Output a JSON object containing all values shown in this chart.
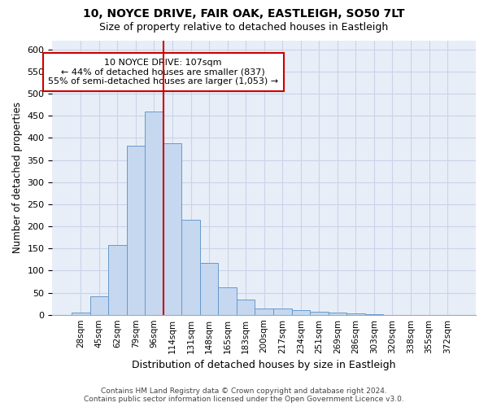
{
  "title1": "10, NOYCE DRIVE, FAIR OAK, EASTLEIGH, SO50 7LT",
  "title2": "Size of property relative to detached houses in Eastleigh",
  "xlabel": "Distribution of detached houses by size in Eastleigh",
  "ylabel": "Number of detached properties",
  "categories": [
    "28sqm",
    "45sqm",
    "62sqm",
    "79sqm",
    "96sqm",
    "114sqm",
    "131sqm",
    "148sqm",
    "165sqm",
    "183sqm",
    "200sqm",
    "217sqm",
    "234sqm",
    "251sqm",
    "269sqm",
    "286sqm",
    "303sqm",
    "320sqm",
    "338sqm",
    "355sqm",
    "372sqm"
  ],
  "values": [
    5,
    42,
    158,
    383,
    460,
    388,
    215,
    118,
    62,
    35,
    14,
    14,
    10,
    7,
    5,
    3,
    1,
    0,
    0,
    0,
    0
  ],
  "bar_color": "#c5d8f0",
  "bar_edge_color": "#6699cc",
  "grid_color": "#c8d4e8",
  "background_color": "#e8eef8",
  "annotation_line0": "10 NOYCE DRIVE: 107sqm",
  "annotation_line1": "← 44% of detached houses are smaller (837)",
  "annotation_line2": "55% of semi-detached houses are larger (1,053) →",
  "annotation_box_color": "#ffffff",
  "annotation_box_edge": "#cc0000",
  "vline_color": "#cc0000",
  "vline_x": 4.5,
  "ylim": [
    0,
    620
  ],
  "yticks": [
    0,
    50,
    100,
    150,
    200,
    250,
    300,
    350,
    400,
    450,
    500,
    550,
    600
  ],
  "footnote1": "Contains HM Land Registry data © Crown copyright and database right 2024.",
  "footnote2": "Contains public sector information licensed under the Open Government Licence v3.0."
}
